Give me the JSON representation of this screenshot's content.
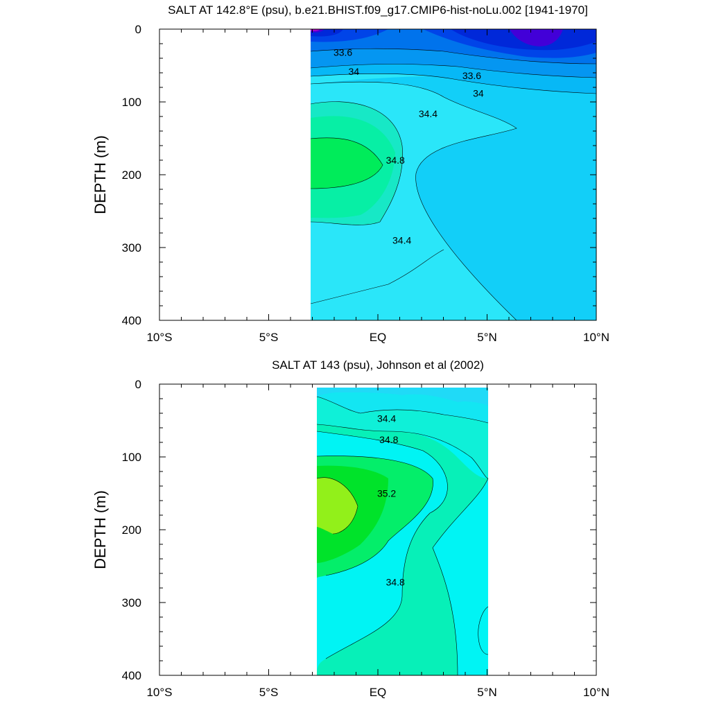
{
  "chart_data": [
    {
      "type": "contour",
      "title": "SALT AT 142.8°E (psu), b.e21.BHIST.f09_g17.CMIP6-hist-noLu.002 [1941-1970]",
      "ylabel": "DEPTH (m)",
      "xlabel": "",
      "xlim": [
        -10,
        10
      ],
      "ylim": [
        400,
        0
      ],
      "x_ticks": [
        -10,
        -5,
        0,
        5,
        10
      ],
      "x_tick_labels": [
        "10°S",
        "5°S",
        "EQ",
        "5°N",
        "10°N"
      ],
      "y_ticks": [
        0,
        100,
        200,
        300,
        400
      ],
      "y_tick_labels": [
        "0",
        "100",
        "200",
        "300",
        "400"
      ],
      "data_extent": {
        "lon_range": [
          -3.1,
          10
        ],
        "depth_range": [
          0,
          400
        ]
      },
      "contour_labels": [
        {
          "text": "33.6",
          "lat": -1.6,
          "depth": 32
        },
        {
          "text": "34",
          "lat": -1.1,
          "depth": 58
        },
        {
          "text": "33.6",
          "lat": 4.3,
          "depth": 64
        },
        {
          "text": "34",
          "lat": 4.6,
          "depth": 88
        },
        {
          "text": "34.4",
          "lat": 2.3,
          "depth": 116
        },
        {
          "text": "34.8",
          "lat": 0.8,
          "depth": 180
        },
        {
          "text": "34.4",
          "lat": 1.1,
          "depth": 290
        }
      ],
      "features": [
        {
          "label": "34.8+ salinity core",
          "lat_range": [
            -3.1,
            0.2
          ],
          "depth_range": [
            148,
            214
          ]
        },
        {
          "label": "low-salinity surface pool",
          "lat_range": [
            6.2,
            8.5
          ],
          "depth_range": [
            0,
            28
          ]
        }
      ]
    },
    {
      "type": "contour",
      "title": "SALT AT 143 (psu), Johnson et al (2002)",
      "ylabel": "DEPTH (m)",
      "xlabel": "",
      "xlim": [
        -10,
        10
      ],
      "ylim": [
        400,
        0
      ],
      "x_ticks": [
        -10,
        -5,
        0,
        5,
        10
      ],
      "x_tick_labels": [
        "10°S",
        "5°S",
        "EQ",
        "5°N",
        "10°N"
      ],
      "y_ticks": [
        0,
        100,
        200,
        300,
        400
      ],
      "y_tick_labels": [
        "0",
        "100",
        "200",
        "300",
        "400"
      ],
      "data_extent": {
        "lon_range": [
          -2.8,
          5
        ],
        "depth_range": [
          5,
          400
        ]
      },
      "contour_labels": [
        {
          "text": "34.4",
          "lat": 0.4,
          "depth": 47
        },
        {
          "text": "34.8",
          "lat": 0.5,
          "depth": 76
        },
        {
          "text": "35.2",
          "lat": 0.4,
          "depth": 150
        },
        {
          "text": "34.8",
          "lat": 0.8,
          "depth": 272
        }
      ],
      "features": [
        {
          "label": "35.2+ salinity core",
          "lat_range": [
            -2.8,
            -1.0
          ],
          "depth_range": [
            125,
            205
          ]
        }
      ]
    }
  ]
}
